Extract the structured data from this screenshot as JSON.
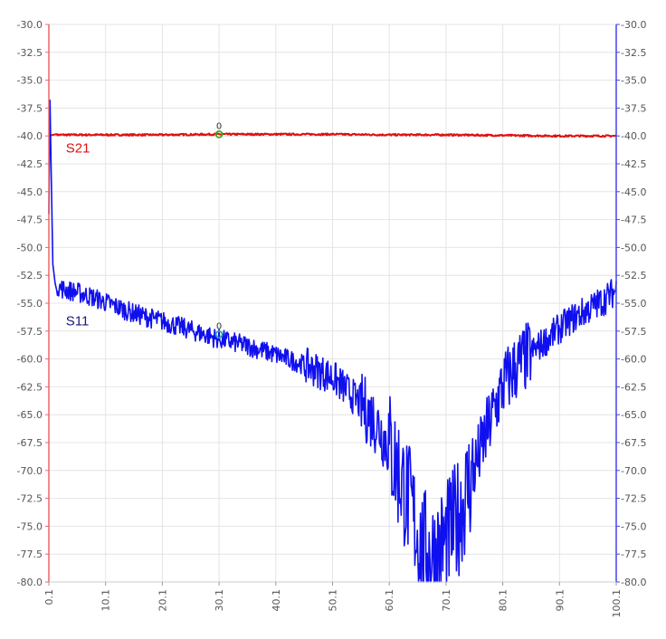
{
  "chart_data": {
    "type": "line",
    "title": "",
    "xlabel": "",
    "ylabel": "",
    "xlim": [
      0.1,
      100.1
    ],
    "ylim": [
      -80.0,
      -30.0
    ],
    "x_ticks": [
      "0.1",
      "10.1",
      "20.1",
      "30.1",
      "40.1",
      "50.1",
      "60.1",
      "70.1",
      "80.1",
      "90.1",
      "100.1"
    ],
    "y_ticks_left": [
      "-30.0",
      "-32.5",
      "-35.0",
      "-37.5",
      "-40.0",
      "-42.5",
      "-45.0",
      "-47.5",
      "-50.0",
      "-52.5",
      "-55.0",
      "-57.5",
      "-60.0",
      "-62.5",
      "-65.0",
      "-67.5",
      "-70.0",
      "-72.5",
      "-75.0",
      "-77.5",
      "-80.0"
    ],
    "y_ticks_right": [
      "-30.0",
      "-32.5",
      "-35.0",
      "-37.5",
      "-40.0",
      "-42.5",
      "-45.0",
      "-47.5",
      "-50.0",
      "-52.5",
      "-55.0",
      "-57.5",
      "-60.0",
      "-62.5",
      "-65.0",
      "-67.5",
      "-70.0",
      "-72.5",
      "-75.0",
      "-77.5",
      "-80.0"
    ],
    "grid": true,
    "colors": {
      "s21": "#dd1111",
      "s11": "#1010ee",
      "left_axis": "#ee6666",
      "right_axis": "#4444ee",
      "grid": "#e4e4e4",
      "marker_s21": "#44aa22",
      "marker_s11": "#22aaaa"
    },
    "series": [
      {
        "name": "S21",
        "x": [
          0.1,
          5,
          10,
          20,
          30,
          40,
          50,
          60,
          70,
          80,
          90,
          100.1
        ],
        "y": [
          -39.9,
          -39.9,
          -39.9,
          -39.9,
          -39.85,
          -39.85,
          -39.85,
          -39.9,
          -39.9,
          -39.95,
          -40.0,
          -40.0
        ]
      },
      {
        "name": "S11",
        "x": [
          0.1,
          0.3,
          0.5,
          0.8,
          1.2,
          2,
          3,
          5,
          8,
          10,
          15,
          20,
          25,
          30,
          35,
          40,
          45,
          50,
          52,
          55,
          58,
          60,
          62,
          64,
          65,
          66,
          68,
          70,
          72,
          74,
          76,
          78,
          80,
          82,
          85,
          88,
          90,
          92,
          95,
          98,
          100.1
        ],
        "y": [
          -47.0,
          -36.8,
          -43.0,
          -51.5,
          -53.2,
          -53.6,
          -53.8,
          -54.0,
          -54.5,
          -54.9,
          -55.9,
          -56.6,
          -57.4,
          -58.2,
          -58.8,
          -59.6,
          -60.5,
          -61.6,
          -62.5,
          -64.0,
          -65.8,
          -67.8,
          -70.5,
          -73.5,
          -75.5,
          -77.0,
          -77.5,
          -76.5,
          -74.5,
          -71.5,
          -68.5,
          -65.5,
          -62.5,
          -61.0,
          -59.5,
          -58.2,
          -57.3,
          -56.5,
          -55.6,
          -54.7,
          -53.8
        ]
      }
    ],
    "annotations": [
      {
        "text": "S21",
        "x": 5.0,
        "y": -40.5
      },
      {
        "text": "S11",
        "x": 5.0,
        "y": -56.0
      }
    ],
    "markers": [
      {
        "series": "S21",
        "label": "0",
        "x": 30.1,
        "y": -39.85
      },
      {
        "series": "S11",
        "label": "0",
        "x": 30.1,
        "y": -57.8
      }
    ]
  }
}
